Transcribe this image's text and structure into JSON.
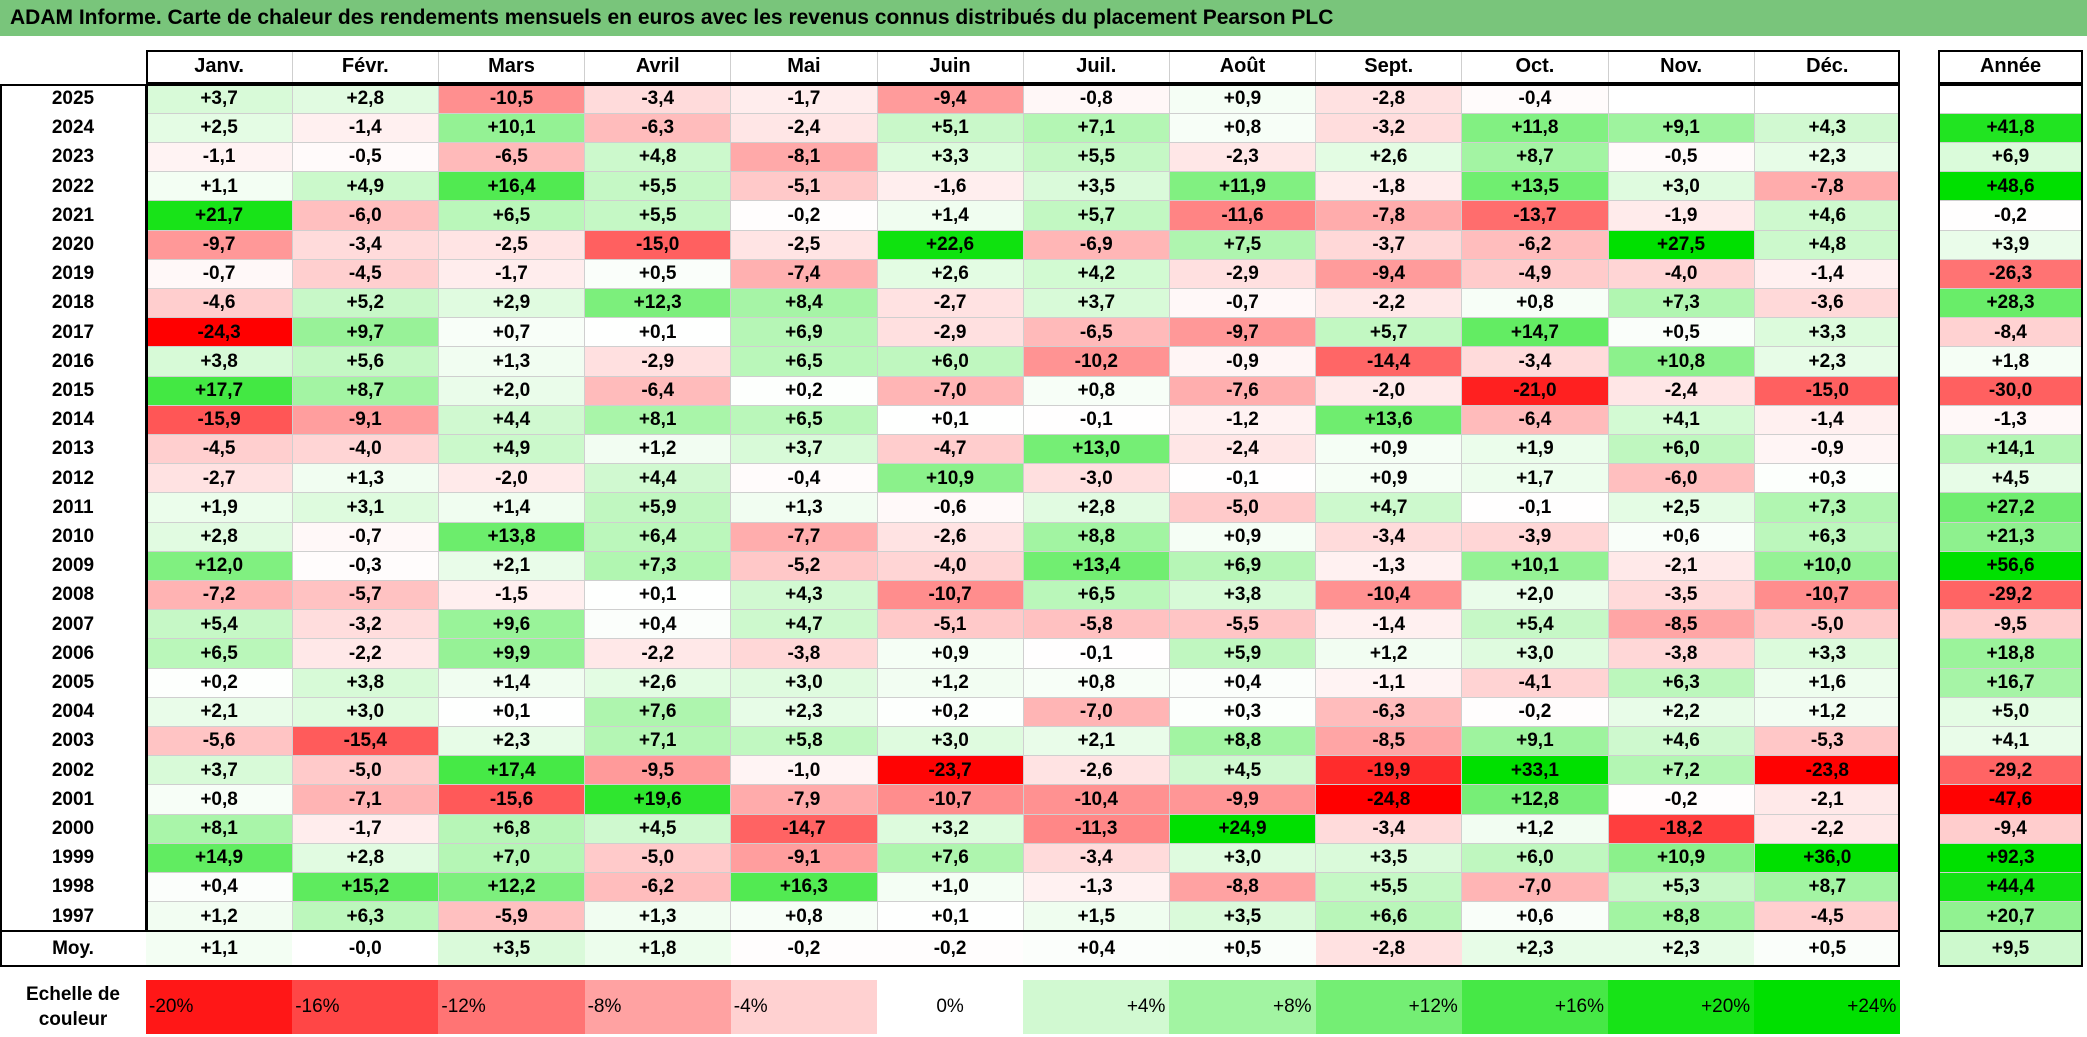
{
  "title": "ADAM Informe. Carte de chaleur des rendements mensuels en euros avec les revenus connus distribués du placement Pearson PLC",
  "colors": {
    "title_bar": "#79c57b",
    "max_red": "#ff0000",
    "max_green": "#00e000",
    "neutral": "#ffffff"
  },
  "chart_data": {
    "type": "heatmap",
    "columns": [
      "Janv.",
      "Févr.",
      "Mars",
      "Avril",
      "Mai",
      "Juin",
      "Juil.",
      "Août",
      "Sept.",
      "Oct.",
      "Nov.",
      "Déc."
    ],
    "annual_header": "Année",
    "average_label": "Moy.",
    "rows": [
      {
        "year": "2025",
        "values": [
          "+3,7",
          "+2,8",
          "-10,5",
          "-3,4",
          "-1,7",
          "-9,4",
          "-0,8",
          "+0,9",
          "-2,8",
          "-0,4",
          "",
          ""
        ],
        "annual": ""
      },
      {
        "year": "2024",
        "values": [
          "+2,5",
          "-1,4",
          "+10,1",
          "-6,3",
          "-2,4",
          "+5,1",
          "+7,1",
          "+0,8",
          "-3,2",
          "+11,8",
          "+9,1",
          "+4,3"
        ],
        "annual": "+41,8"
      },
      {
        "year": "2023",
        "values": [
          "-1,1",
          "-0,5",
          "-6,5",
          "+4,8",
          "-8,1",
          "+3,3",
          "+5,5",
          "-2,3",
          "+2,6",
          "+8,7",
          "-0,5",
          "+2,3"
        ],
        "annual": "+6,9"
      },
      {
        "year": "2022",
        "values": [
          "+1,1",
          "+4,9",
          "+16,4",
          "+5,5",
          "-5,1",
          "-1,6",
          "+3,5",
          "+11,9",
          "-1,8",
          "+13,5",
          "+3,0",
          "-7,8"
        ],
        "annual": "+48,6"
      },
      {
        "year": "2021",
        "values": [
          "+21,7",
          "-6,0",
          "+6,5",
          "+5,5",
          "-0,2",
          "+1,4",
          "+5,7",
          "-11,6",
          "-7,8",
          "-13,7",
          "-1,9",
          "+4,6"
        ],
        "annual": "-0,2"
      },
      {
        "year": "2020",
        "values": [
          "-9,7",
          "-3,4",
          "-2,5",
          "-15,0",
          "-2,5",
          "+22,6",
          "-6,9",
          "+7,5",
          "-3,7",
          "-6,2",
          "+27,5",
          "+4,8"
        ],
        "annual": "+3,9"
      },
      {
        "year": "2019",
        "values": [
          "-0,7",
          "-4,5",
          "-1,7",
          "+0,5",
          "-7,4",
          "+2,6",
          "+4,2",
          "-2,9",
          "-9,4",
          "-4,9",
          "-4,0",
          "-1,4"
        ],
        "annual": "-26,3"
      },
      {
        "year": "2018",
        "values": [
          "-4,6",
          "+5,2",
          "+2,9",
          "+12,3",
          "+8,4",
          "-2,7",
          "+3,7",
          "-0,7",
          "-2,2",
          "+0,8",
          "+7,3",
          "-3,6"
        ],
        "annual": "+28,3"
      },
      {
        "year": "2017",
        "values": [
          "-24,3",
          "+9,7",
          "+0,7",
          "+0,1",
          "+6,9",
          "-2,9",
          "-6,5",
          "-9,7",
          "+5,7",
          "+14,7",
          "+0,5",
          "+3,3"
        ],
        "annual": "-8,4"
      },
      {
        "year": "2016",
        "values": [
          "+3,8",
          "+5,6",
          "+1,3",
          "-2,9",
          "+6,5",
          "+6,0",
          "-10,2",
          "-0,9",
          "-14,4",
          "-3,4",
          "+10,8",
          "+2,3"
        ],
        "annual": "+1,8"
      },
      {
        "year": "2015",
        "values": [
          "+17,7",
          "+8,7",
          "+2,0",
          "-6,4",
          "+0,2",
          "-7,0",
          "+0,8",
          "-7,6",
          "-2,0",
          "-21,0",
          "-2,4",
          "-15,0"
        ],
        "annual": "-30,0"
      },
      {
        "year": "2014",
        "values": [
          "-15,9",
          "-9,1",
          "+4,4",
          "+8,1",
          "+6,5",
          "+0,1",
          "-0,1",
          "-1,2",
          "+13,6",
          "-6,4",
          "+4,1",
          "-1,4"
        ],
        "annual": "-1,3"
      },
      {
        "year": "2013",
        "values": [
          "-4,5",
          "-4,0",
          "+4,9",
          "+1,2",
          "+3,7",
          "-4,7",
          "+13,0",
          "-2,4",
          "+0,9",
          "+1,9",
          "+6,0",
          "-0,9"
        ],
        "annual": "+14,1"
      },
      {
        "year": "2012",
        "values": [
          "-2,7",
          "+1,3",
          "-2,0",
          "+4,4",
          "-0,4",
          "+10,9",
          "-3,0",
          "-0,1",
          "+0,9",
          "+1,7",
          "-6,0",
          "+0,3"
        ],
        "annual": "+4,5"
      },
      {
        "year": "2011",
        "values": [
          "+1,9",
          "+3,1",
          "+1,4",
          "+5,9",
          "+1,3",
          "-0,6",
          "+2,8",
          "-5,0",
          "+4,7",
          "-0,1",
          "+2,5",
          "+7,3"
        ],
        "annual": "+27,2"
      },
      {
        "year": "2010",
        "values": [
          "+2,8",
          "-0,7",
          "+13,8",
          "+6,4",
          "-7,7",
          "-2,6",
          "+8,8",
          "+0,9",
          "-3,4",
          "-3,9",
          "+0,6",
          "+6,3"
        ],
        "annual": "+21,3"
      },
      {
        "year": "2009",
        "values": [
          "+12,0",
          "-0,3",
          "+2,1",
          "+7,3",
          "-5,2",
          "-4,0",
          "+13,4",
          "+6,9",
          "-1,3",
          "+10,1",
          "-2,1",
          "+10,0"
        ],
        "annual": "+56,6"
      },
      {
        "year": "2008",
        "values": [
          "-7,2",
          "-5,7",
          "-1,5",
          "+0,1",
          "+4,3",
          "-10,7",
          "+6,5",
          "+3,8",
          "-10,4",
          "+2,0",
          "-3,5",
          "-10,7"
        ],
        "annual": "-29,2"
      },
      {
        "year": "2007",
        "values": [
          "+5,4",
          "-3,2",
          "+9,6",
          "+0,4",
          "+4,7",
          "-5,1",
          "-5,8",
          "-5,5",
          "-1,4",
          "+5,4",
          "-8,5",
          "-5,0"
        ],
        "annual": "-9,5"
      },
      {
        "year": "2006",
        "values": [
          "+6,5",
          "-2,2",
          "+9,9",
          "-2,2",
          "-3,8",
          "+0,9",
          "-0,1",
          "+5,9",
          "+1,2",
          "+3,0",
          "-3,8",
          "+3,3"
        ],
        "annual": "+18,8"
      },
      {
        "year": "2005",
        "values": [
          "+0,2",
          "+3,8",
          "+1,4",
          "+2,6",
          "+3,0",
          "+1,2",
          "+0,8",
          "+0,4",
          "-1,1",
          "-4,1",
          "+6,3",
          "+1,6"
        ],
        "annual": "+16,7"
      },
      {
        "year": "2004",
        "values": [
          "+2,1",
          "+3,0",
          "+0,1",
          "+7,6",
          "+2,3",
          "+0,2",
          "-7,0",
          "+0,3",
          "-6,3",
          "-0,2",
          "+2,2",
          "+1,2"
        ],
        "annual": "+5,0"
      },
      {
        "year": "2003",
        "values": [
          "-5,6",
          "-15,4",
          "+2,3",
          "+7,1",
          "+5,8",
          "+3,0",
          "+2,1",
          "+8,8",
          "-8,5",
          "+9,1",
          "+4,6",
          "-5,3"
        ],
        "annual": "+4,1"
      },
      {
        "year": "2002",
        "values": [
          "+3,7",
          "-5,0",
          "+17,4",
          "-9,5",
          "-1,0",
          "-23,7",
          "-2,6",
          "+4,5",
          "-19,9",
          "+33,1",
          "+7,2",
          "-23,8"
        ],
        "annual": "-29,2"
      },
      {
        "year": "2001",
        "values": [
          "+0,8",
          "-7,1",
          "-15,6",
          "+19,6",
          "-7,9",
          "-10,7",
          "-10,4",
          "-9,9",
          "-24,8",
          "+12,8",
          "-0,2",
          "-2,1"
        ],
        "annual": "-47,6"
      },
      {
        "year": "2000",
        "values": [
          "+8,1",
          "-1,7",
          "+6,8",
          "+4,5",
          "-14,7",
          "+3,2",
          "-11,3",
          "+24,9",
          "-3,4",
          "+1,2",
          "-18,2",
          "-2,2"
        ],
        "annual": "-9,4"
      },
      {
        "year": "1999",
        "values": [
          "+14,9",
          "+2,8",
          "+7,0",
          "-5,0",
          "-9,1",
          "+7,6",
          "-3,4",
          "+3,0",
          "+3,5",
          "+6,0",
          "+10,9",
          "+36,0"
        ],
        "annual": "+92,3"
      },
      {
        "year": "1998",
        "values": [
          "+0,4",
          "+15,2",
          "+12,2",
          "-6,2",
          "+16,3",
          "+1,0",
          "-1,3",
          "-8,8",
          "+5,5",
          "-7,0",
          "+5,3",
          "+8,7"
        ],
        "annual": "+44,4"
      },
      {
        "year": "1997",
        "values": [
          "+1,2",
          "+6,3",
          "-5,9",
          "+1,3",
          "+0,8",
          "+0,1",
          "+1,5",
          "+3,5",
          "+6,6",
          "+0,6",
          "+8,8",
          "-4,5"
        ],
        "annual": "+20,7"
      }
    ],
    "averages": [
      "+1,1",
      "-0,0",
      "+3,5",
      "+1,8",
      "-0,2",
      "-0,2",
      "+0,4",
      "+0,5",
      "-2,8",
      "+2,3",
      "+2,3",
      "+0,5"
    ],
    "annual_average": "+9,5",
    "scale_label": "Echelle de couleur",
    "scale": [
      "-20%",
      "-16%",
      "-12%",
      "-8%",
      "-4%",
      "0%",
      "+4%",
      "+8%",
      "+12%",
      "+16%",
      "+20%",
      "+24%"
    ]
  }
}
